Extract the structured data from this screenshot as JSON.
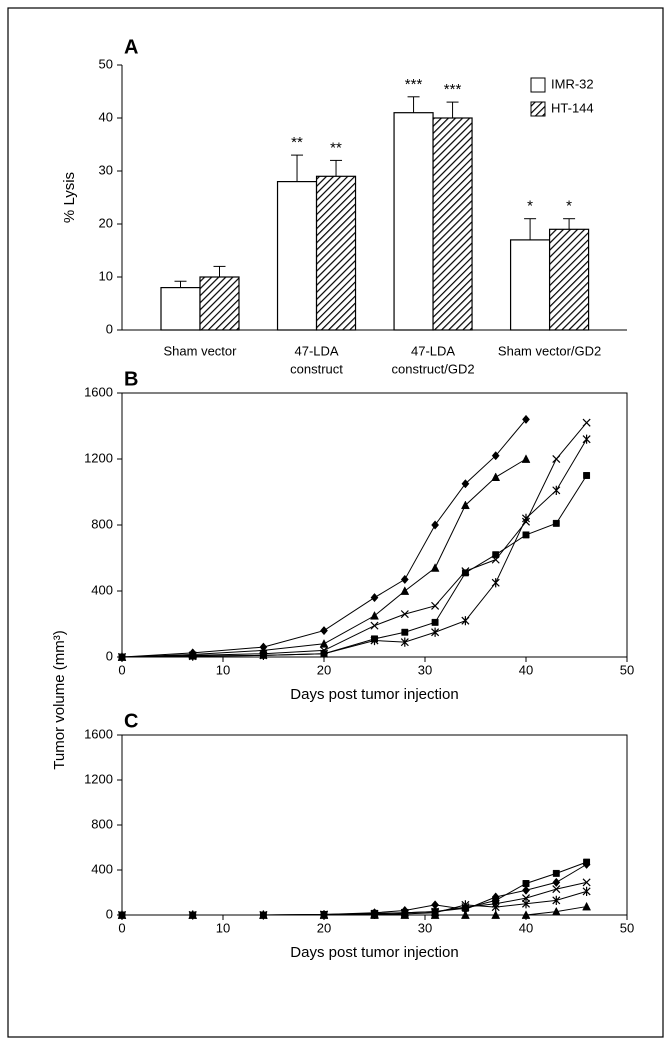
{
  "chart_data": [
    {
      "type": "bar",
      "panel": "A",
      "ylabel": "% Lysis",
      "categories": [
        [
          "Sham vector"
        ],
        [
          "47-LDA",
          "construct"
        ],
        [
          "47-LDA",
          "construct/GD2"
        ],
        [
          "Sham vector/GD2"
        ]
      ],
      "series": [
        {
          "name": "IMR-32",
          "color": "#ffffff",
          "hatch": false,
          "values": [
            8,
            28,
            41,
            17
          ],
          "errors": [
            1.2,
            5,
            3,
            4
          ],
          "annotations": [
            null,
            "**",
            "***",
            "*"
          ]
        },
        {
          "name": "HT-144",
          "color": "#ffffff",
          "hatch": true,
          "values": [
            10,
            29,
            40,
            19
          ],
          "errors": [
            2,
            3,
            3,
            2
          ],
          "annotations": [
            null,
            "**",
            "***",
            "*"
          ]
        }
      ],
      "ylim": [
        0,
        50
      ],
      "yticks": [
        0,
        10,
        20,
        30,
        40,
        50
      ],
      "legend": "upper right"
    },
    {
      "type": "line",
      "panel": "B",
      "xlabel": "Days post tumor injection",
      "xlim": [
        0,
        50
      ],
      "xticks": [
        0,
        10,
        20,
        30,
        40,
        50
      ],
      "ylim": [
        0,
        1600
      ],
      "yticks": [
        0,
        400,
        800,
        1200,
        1600
      ],
      "series": [
        {
          "marker": "diamond",
          "color": "#000000",
          "x": [
            0,
            7,
            14,
            20,
            25,
            28,
            31,
            34,
            37,
            40
          ],
          "values": [
            0,
            25,
            60,
            160,
            360,
            470,
            800,
            1050,
            1220,
            1440
          ]
        },
        {
          "marker": "triangle",
          "color": "#000000",
          "x": [
            0,
            7,
            14,
            20,
            25,
            28,
            31,
            34,
            37,
            40
          ],
          "values": [
            0,
            15,
            40,
            80,
            250,
            400,
            540,
            920,
            1090,
            1200
          ]
        },
        {
          "marker": "cross",
          "color": "#000000",
          "x": [
            0,
            7,
            14,
            20,
            25,
            28,
            31,
            34,
            37,
            40,
            43,
            46
          ],
          "values": [
            0,
            10,
            20,
            40,
            190,
            260,
            310,
            520,
            590,
            820,
            1200,
            1420
          ]
        },
        {
          "marker": "square",
          "color": "#000000",
          "x": [
            0,
            7,
            14,
            20,
            25,
            28,
            31,
            34,
            37,
            40,
            43,
            46
          ],
          "values": [
            0,
            5,
            10,
            20,
            110,
            150,
            210,
            510,
            620,
            740,
            810,
            1100
          ]
        },
        {
          "marker": "star",
          "color": "#000000",
          "x": [
            0,
            7,
            14,
            20,
            25,
            28,
            31,
            34,
            37,
            40,
            43,
            46
          ],
          "values": [
            0,
            5,
            10,
            20,
            100,
            90,
            150,
            220,
            450,
            840,
            1010,
            1320
          ]
        }
      ]
    },
    {
      "type": "line",
      "panel": "C",
      "xlabel": "Days post tumor injection",
      "xlim": [
        0,
        50
      ],
      "xticks": [
        0,
        10,
        20,
        30,
        40,
        50
      ],
      "ylim": [
        0,
        1600
      ],
      "yticks": [
        0,
        400,
        800,
        1200,
        1600
      ],
      "series": [
        {
          "marker": "square",
          "color": "#000000",
          "x": [
            0,
            7,
            14,
            20,
            25,
            28,
            31,
            34,
            37,
            40,
            43,
            46
          ],
          "values": [
            0,
            0,
            0,
            5,
            15,
            20,
            30,
            60,
            130,
            280,
            370,
            470
          ]
        },
        {
          "marker": "diamond",
          "color": "#000000",
          "x": [
            0,
            7,
            14,
            20,
            25,
            28,
            31,
            34,
            37,
            40,
            43,
            46
          ],
          "values": [
            0,
            0,
            0,
            5,
            20,
            40,
            90,
            50,
            160,
            220,
            290,
            450
          ]
        },
        {
          "marker": "cross",
          "color": "#000000",
          "x": [
            0,
            7,
            14,
            20,
            25,
            28,
            31,
            34,
            37,
            40,
            43,
            46
          ],
          "values": [
            0,
            0,
            0,
            5,
            10,
            20,
            30,
            70,
            100,
            150,
            230,
            290
          ]
        },
        {
          "marker": "star",
          "color": "#000000",
          "x": [
            0,
            7,
            14,
            20,
            25,
            28,
            31,
            34,
            37,
            40,
            43,
            46
          ],
          "values": [
            0,
            0,
            0,
            0,
            5,
            10,
            20,
            90,
            70,
            100,
            130,
            210
          ]
        },
        {
          "marker": "triangle",
          "color": "#000000",
          "x": [
            0,
            7,
            14,
            20,
            25,
            28,
            31,
            34,
            37,
            40,
            43,
            46
          ],
          "values": [
            0,
            0,
            0,
            0,
            0,
            0,
            0,
            0,
            0,
            0,
            30,
            75
          ]
        }
      ]
    }
  ],
  "ylabel_shared": "Tumor volume (mm³)"
}
